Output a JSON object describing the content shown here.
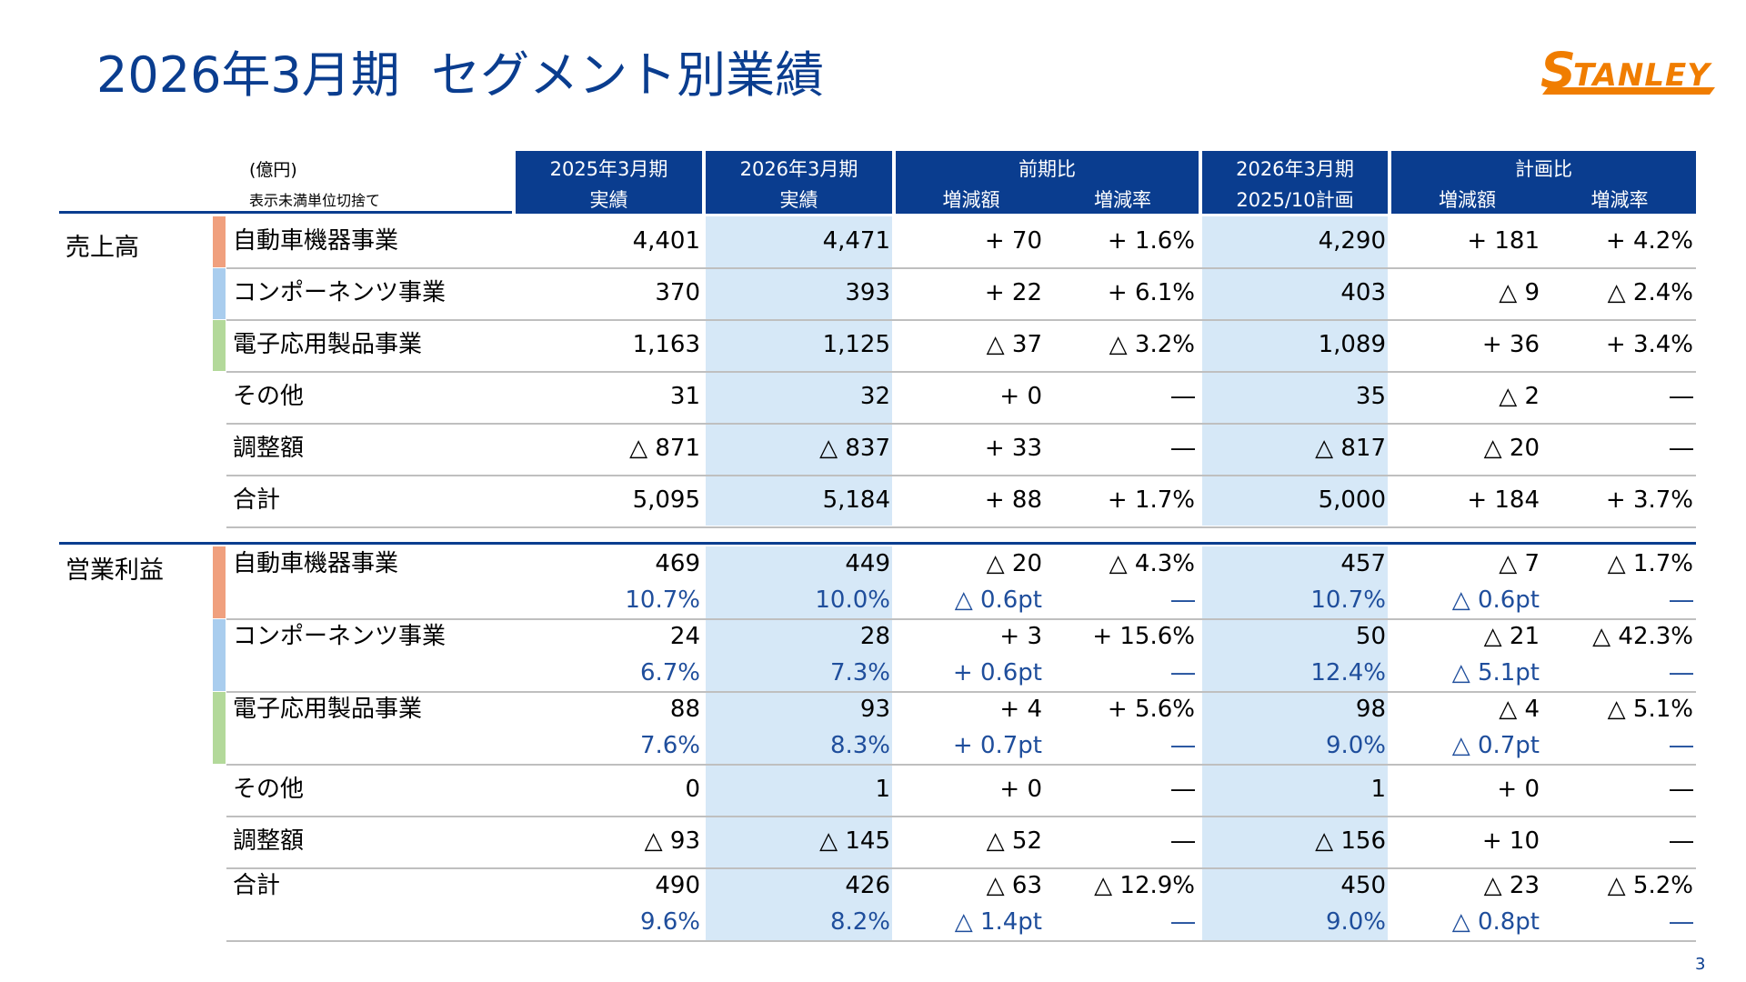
{
  "title": "2026年3月期  セグメント別業績",
  "logo_text": "STANLEY",
  "page_number": "3",
  "header": {
    "unit": "(億円)",
    "note": "表示未満単位切捨て",
    "col_fy25": [
      "2025年3月期",
      "実績"
    ],
    "col_fy26": [
      "2026年3月期",
      "実績"
    ],
    "col_yoy": "前期比",
    "col_yoy_sub": [
      "増減額",
      "増減率"
    ],
    "col_plan": [
      "2026年3月期",
      "2025/10計画"
    ],
    "col_vsplan": "計画比",
    "col_vsplan_sub": [
      "増減額",
      "増減率"
    ]
  },
  "sections": {
    "sales": {
      "label": "売上高",
      "rows": [
        {
          "label": "自動車機器事業",
          "bar": "#f0a07e",
          "v": [
            "4,401",
            "4,471",
            "+ 70",
            "+ 1.6%",
            "4,290",
            "+ 181",
            "+ 4.2%"
          ]
        },
        {
          "label": "コンポーネンツ事業",
          "bar": "#a9cdee",
          "v": [
            "370",
            "393",
            "+ 22",
            "+ 6.1%",
            "403",
            "△ 9",
            "△ 2.4%"
          ]
        },
        {
          "label": "電子応用製品事業",
          "bar": "#b3d99a",
          "v": [
            "1,163",
            "1,125",
            "△ 37",
            "△ 3.2%",
            "1,089",
            "+ 36",
            "+ 3.4%"
          ]
        },
        {
          "label": "その他",
          "v": [
            "31",
            "32",
            "+ 0",
            "―",
            "35",
            "△ 2",
            "―"
          ]
        },
        {
          "label": "調整額",
          "v": [
            "△ 871",
            "△ 837",
            "+ 33",
            "―",
            "△ 817",
            "△ 20",
            "―"
          ]
        },
        {
          "label": "合計",
          "v": [
            "5,095",
            "5,184",
            "+ 88",
            "+ 1.7%",
            "5,000",
            "+ 184",
            "+ 3.7%"
          ]
        }
      ]
    },
    "op": {
      "label": "営業利益",
      "rows": [
        {
          "label": "自動車機器事業",
          "bar": "#f0a07e",
          "v": [
            "469",
            "449",
            "△ 20",
            "△ 4.3%",
            "457",
            "△ 7",
            "△ 1.7%"
          ],
          "m": [
            "10.7%",
            "10.0%",
            "△ 0.6pt",
            "―",
            "10.7%",
            "△ 0.6pt",
            "―"
          ]
        },
        {
          "label": "コンポーネンツ事業",
          "bar": "#a9cdee",
          "v": [
            "24",
            "28",
            "+ 3",
            "+ 15.6%",
            "50",
            "△ 21",
            "△ 42.3%"
          ],
          "m": [
            "6.7%",
            "7.3%",
            "+ 0.6pt",
            "―",
            "12.4%",
            "△ 5.1pt",
            "―"
          ]
        },
        {
          "label": "電子応用製品事業",
          "bar": "#b3d99a",
          "v": [
            "88",
            "93",
            "+ 4",
            "+ 5.6%",
            "98",
            "△ 4",
            "△ 5.1%"
          ],
          "m": [
            "7.6%",
            "8.3%",
            "+ 0.7pt",
            "―",
            "9.0%",
            "△ 0.7pt",
            "―"
          ]
        },
        {
          "label": "その他",
          "v": [
            "0",
            "1",
            "+ 0",
            "―",
            "1",
            "+ 0",
            "―"
          ]
        },
        {
          "label": "調整額",
          "v": [
            "△ 93",
            "△ 145",
            "△ 52",
            "―",
            "△ 156",
            "+ 10",
            "―"
          ]
        },
        {
          "label": "合計",
          "v": [
            "490",
            "426",
            "△ 63",
            "△ 12.9%",
            "450",
            "△ 23",
            "△ 5.2%"
          ],
          "m": [
            "9.6%",
            "8.2%",
            "△ 1.4pt",
            "―",
            "9.0%",
            "△ 0.8pt",
            "―"
          ]
        }
      ]
    }
  }
}
